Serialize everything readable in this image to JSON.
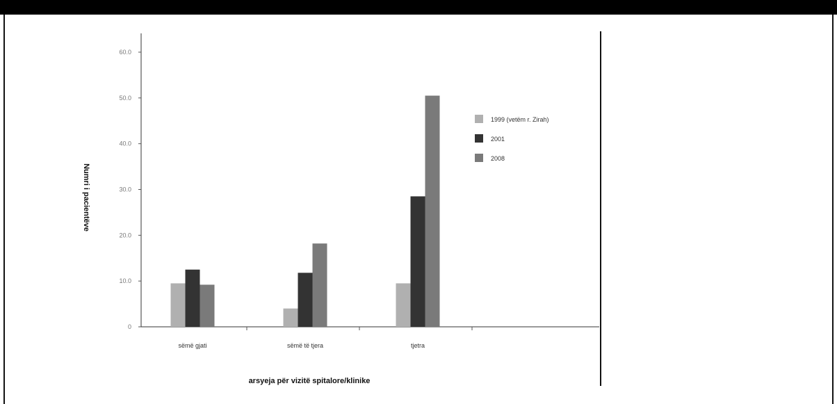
{
  "chart_data": {
    "type": "bar",
    "xlabel": "arsyeja për vizitë spitalore/klinike",
    "ylabel": "Numri i pacientëve",
    "ylim": [
      0,
      600
    ],
    "yticks": [
      "0",
      "10.0",
      "20.0",
      "30.0",
      "40.0",
      "50.0",
      "60.0"
    ],
    "categories": [
      "sëmë gjati",
      "sëmë të tjera",
      "tjetra"
    ],
    "series": [
      {
        "name": "1999 (vetëm r. Zirah)",
        "color": "#b0b0b0",
        "values": [
          95,
          40,
          95
        ]
      },
      {
        "name": "2001",
        "color": "#333333",
        "values": [
          125,
          118,
          285
        ]
      },
      {
        "name": "2008",
        "color": "#7a7a7a",
        "values": [
          92,
          182,
          505
        ]
      }
    ],
    "legend_position": "right",
    "grid": false
  }
}
